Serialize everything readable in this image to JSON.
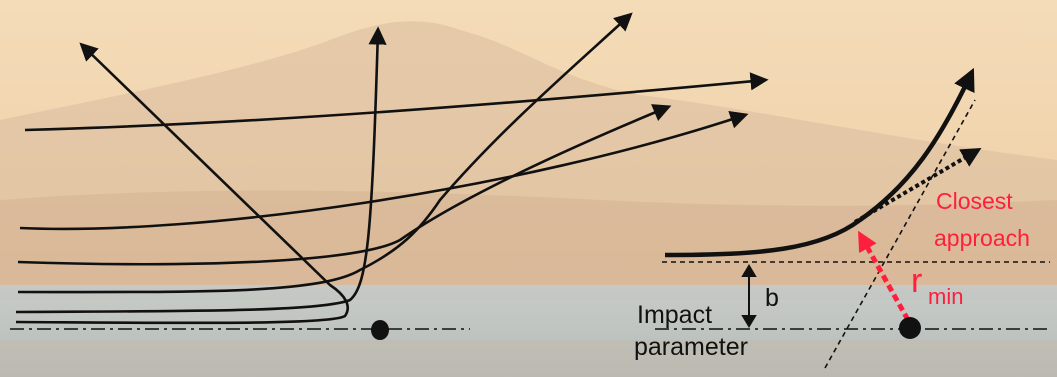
{
  "labels": {
    "closest": "Closest",
    "approach": "approach",
    "b": "b",
    "impact": "Impact",
    "parameter": "parameter",
    "r": "r",
    "min": "min"
  },
  "colors": {
    "sky_top": "#f3d9b3",
    "sky_bottom": "#e9c79e",
    "mountain": "#d4b79a",
    "sea": "#b6c2c6",
    "ink": "#111111",
    "accent_red": "#ff1f3d"
  }
}
